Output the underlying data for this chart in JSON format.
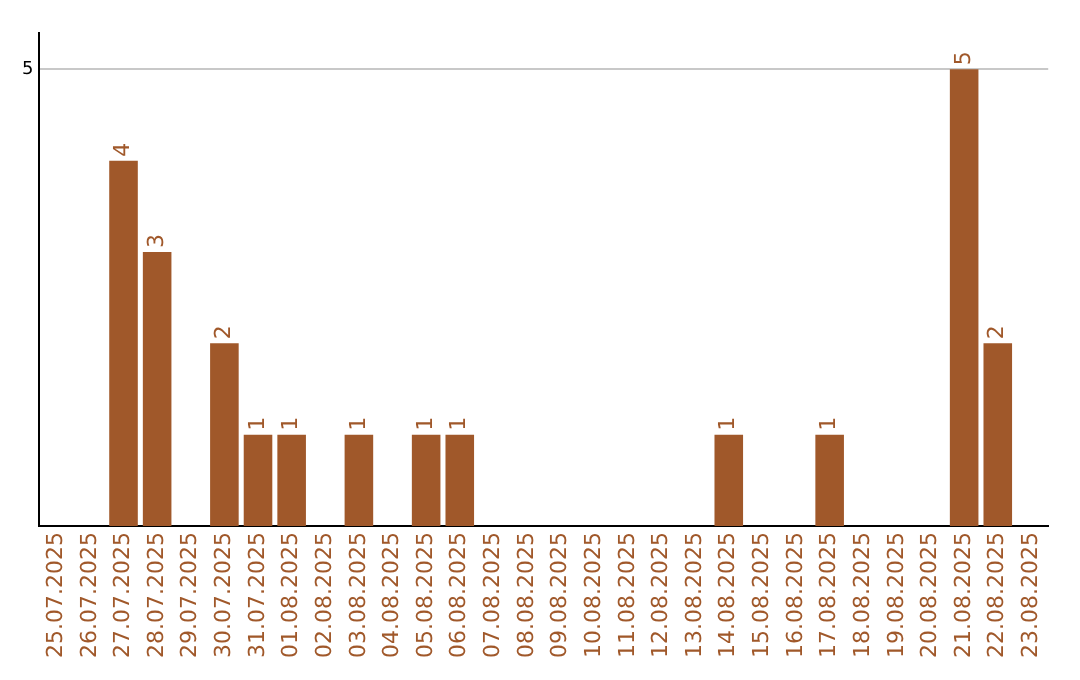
{
  "chart_data": {
    "type": "bar",
    "categories": [
      "25.07.2025",
      "26.07.2025",
      "27.07.2025",
      "28.07.2025",
      "29.07.2025",
      "30.07.2025",
      "31.07.2025",
      "01.08.2025",
      "02.08.2025",
      "03.08.2025",
      "04.08.2025",
      "05.08.2025",
      "06.08.2025",
      "07.08.2025",
      "08.08.2025",
      "09.08.2025",
      "10.08.2025",
      "11.08.2025",
      "12.08.2025",
      "13.08.2025",
      "14.08.2025",
      "15.08.2025",
      "16.08.2025",
      "17.08.2025",
      "18.08.2025",
      "19.08.2025",
      "20.08.2025",
      "21.08.2025",
      "22.08.2025",
      "23.08.2025"
    ],
    "values": [
      0,
      0,
      4,
      3,
      0,
      2,
      1,
      1,
      0,
      1,
      0,
      1,
      1,
      0,
      0,
      0,
      0,
      0,
      0,
      0,
      1,
      0,
      0,
      1,
      0,
      0,
      0,
      5,
      2,
      0
    ],
    "value_labels": [
      null,
      null,
      "4",
      "3",
      null,
      "2",
      "1",
      "1",
      null,
      "1",
      null,
      "1",
      "1",
      null,
      null,
      null,
      null,
      null,
      null,
      null,
      "1",
      null,
      null,
      "1",
      null,
      null,
      null,
      "5",
      "2",
      null
    ],
    "color": "#a0582a",
    "ylim": [
      0,
      5.4
    ],
    "yticks": [
      5
    ],
    "grid": "y",
    "legend": false
  }
}
